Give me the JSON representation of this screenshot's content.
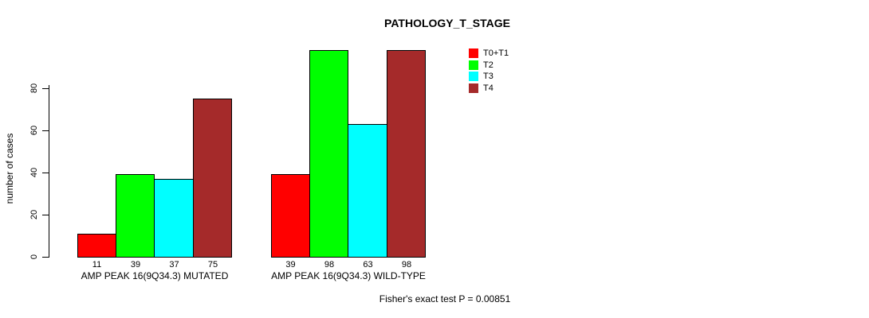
{
  "title": "PATHOLOGY_T_STAGE",
  "y_axis_label": "number of cases",
  "footer_note": "Fisher's exact test P = 0.00851",
  "legend": {
    "position": "top-right",
    "entries": [
      {
        "label": "T0+T1",
        "color": "#ff0000"
      },
      {
        "label": "T2",
        "color": "#00ff00"
      },
      {
        "label": "T3",
        "color": "#00ffff"
      },
      {
        "label": "T4",
        "color": "#a52a2a"
      }
    ]
  },
  "chart_data": {
    "type": "bar",
    "title": "PATHOLOGY_T_STAGE",
    "ylabel": "number of cases",
    "xlabel": "",
    "categories": [
      "AMP PEAK 16(9Q34.3) MUTATED",
      "AMP PEAK 16(9Q34.3) WILD-TYPE"
    ],
    "series": [
      {
        "name": "T0+T1",
        "color": "#ff0000",
        "values": [
          11,
          39
        ]
      },
      {
        "name": "T2",
        "color": "#00ff00",
        "values": [
          39,
          98
        ]
      },
      {
        "name": "T3",
        "color": "#00ffff",
        "values": [
          37,
          63
        ]
      },
      {
        "name": "T4",
        "color": "#a52a2a",
        "values": [
          75,
          98
        ]
      }
    ],
    "value_labels": [
      [
        11,
        39,
        37,
        75
      ],
      [
        39,
        98,
        63,
        98
      ]
    ],
    "yticks": [
      0,
      20,
      40,
      60,
      80
    ],
    "ylim": [
      0,
      100
    ],
    "grid": false,
    "legend_position": "top-right",
    "annotation": "Fisher's exact test P = 0.00851"
  }
}
